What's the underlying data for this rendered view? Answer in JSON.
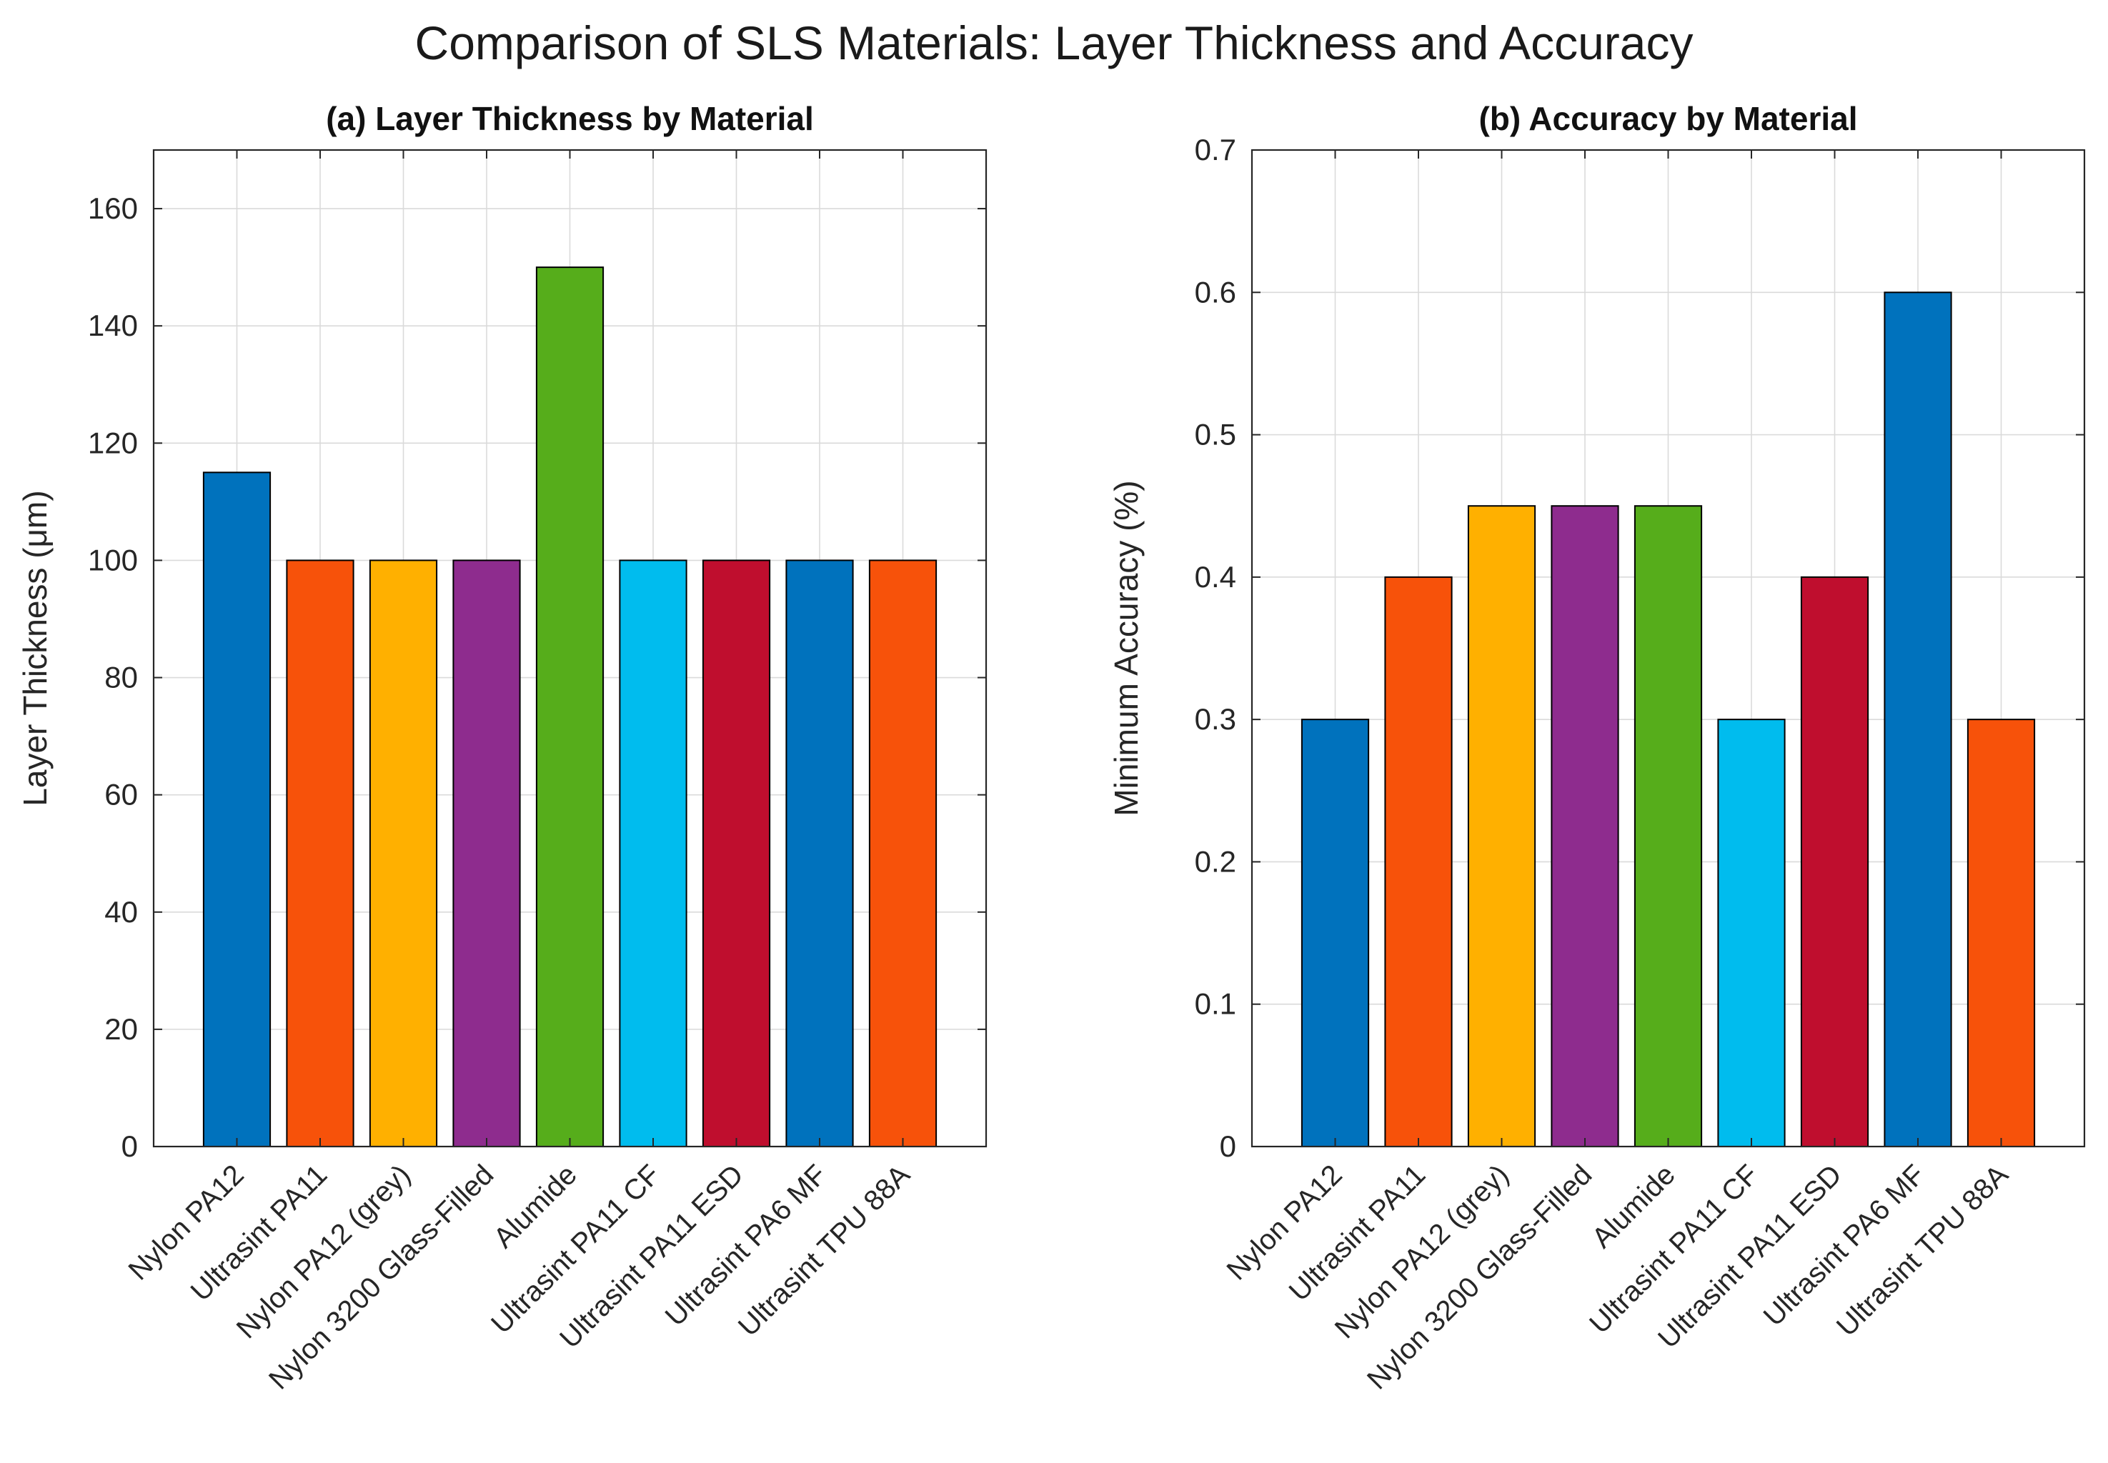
{
  "figure": {
    "title": "Comparison of SLS Materials: Layer Thickness and Accuracy"
  },
  "colors": {
    "blue": "#0072BD",
    "orange": "#F7520A",
    "yellow": "#FFB000",
    "purple": "#8E2C8E",
    "green": "#56AD1B",
    "cyan": "#00BCEE",
    "crimson": "#BF0E2E",
    "grid": "#dadada",
    "axis": "#262626"
  },
  "chart_data": [
    {
      "type": "bar",
      "title": "(a) Layer Thickness by Material",
      "xlabel": "",
      "ylabel": "Layer Thickness (μm)",
      "ylim": [
        0,
        170
      ],
      "yticks": [
        0,
        20,
        40,
        60,
        80,
        100,
        120,
        140,
        160
      ],
      "ytick_labels": [
        "0",
        "20",
        "40",
        "60",
        "80",
        "100",
        "120",
        "140",
        "160"
      ],
      "grid": true,
      "categories": [
        "Nylon PA12",
        "Ultrasint PA11",
        "Nylon PA12 (grey)",
        "Nylon 3200 Glass-Filled",
        "Alumide",
        "Ultrasint PA11 CF",
        "Ultrasint PA11 ESD",
        "Ultrasint PA6 MF",
        "Ultrasint TPU 88A"
      ],
      "values": [
        115,
        100,
        100,
        100,
        150,
        100,
        100,
        100,
        100
      ],
      "bar_colors": [
        "#0072BD",
        "#F7520A",
        "#FFB000",
        "#8E2C8E",
        "#56AD1B",
        "#00BCEE",
        "#BF0E2E",
        "#0072BD",
        "#F7520A"
      ]
    },
    {
      "type": "bar",
      "title": "(b) Accuracy by Material",
      "xlabel": "",
      "ylabel": "Minimum Accuracy (%)",
      "ylim": [
        0,
        0.7
      ],
      "yticks": [
        0,
        0.1,
        0.2,
        0.3,
        0.4,
        0.5,
        0.6,
        0.7
      ],
      "ytick_labels": [
        "0",
        "0.1",
        "0.2",
        "0.3",
        "0.4",
        "0.5",
        "0.6",
        "0.7"
      ],
      "grid": true,
      "categories": [
        "Nylon PA12",
        "Ultrasint PA11",
        "Nylon PA12 (grey)",
        "Nylon 3200 Glass-Filled",
        "Alumide",
        "Ultrasint PA11 CF",
        "Ultrasint PA11 ESD",
        "Ultrasint PA6 MF",
        "Ultrasint TPU 88A"
      ],
      "values": [
        0.3,
        0.4,
        0.45,
        0.45,
        0.45,
        0.3,
        0.4,
        0.6,
        0.3
      ],
      "bar_colors": [
        "#0072BD",
        "#F7520A",
        "#FFB000",
        "#8E2C8E",
        "#56AD1B",
        "#00BCEE",
        "#BF0E2E",
        "#0072BD",
        "#F7520A"
      ]
    }
  ]
}
